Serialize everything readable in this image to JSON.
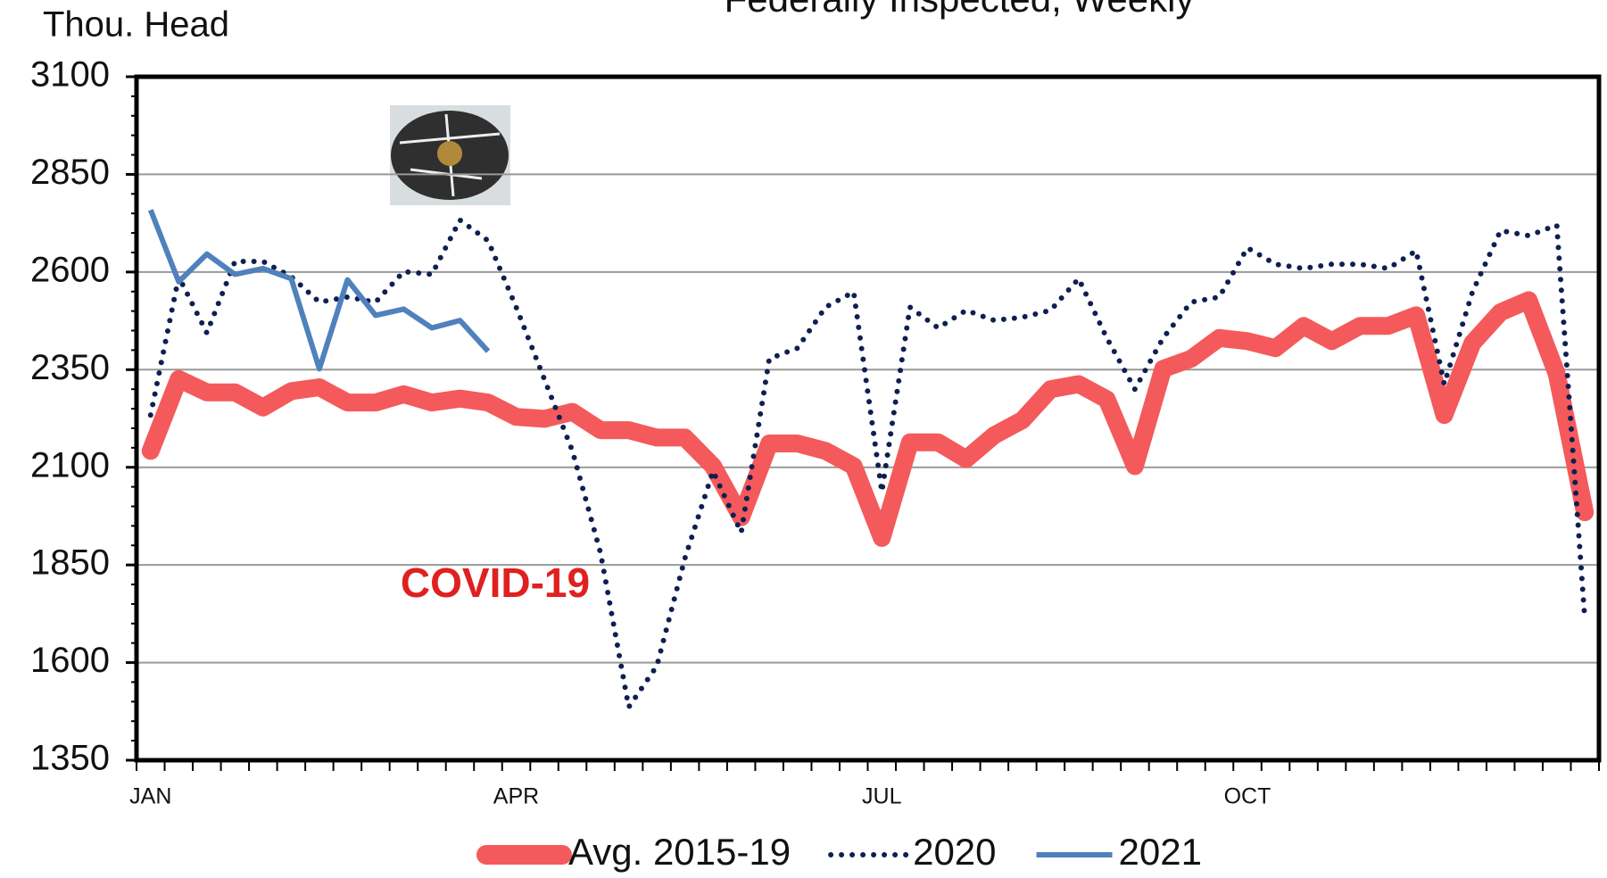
{
  "chart_data": {
    "type": "line",
    "title": "Federally Inspected, Weekly",
    "y_label": "Thou. Head",
    "annotation": "COVID-19",
    "categories": [
      "JAN",
      null,
      null,
      null,
      null,
      null,
      null,
      null,
      null,
      null,
      null,
      null,
      null,
      "APR",
      null,
      null,
      null,
      null,
      null,
      null,
      null,
      null,
      null,
      null,
      null,
      null,
      "JUL",
      null,
      null,
      null,
      null,
      null,
      null,
      null,
      null,
      null,
      null,
      null,
      null,
      "OCT",
      null,
      null,
      null,
      null,
      null,
      null,
      null,
      null,
      null,
      null,
      null,
      null
    ],
    "series": [
      {
        "name": "Avg. 2015-19",
        "color": "#f45a5b",
        "style": "thick",
        "values": [
          2142,
          2326,
          2292,
          2292,
          2253,
          2295,
          2305,
          2266,
          2266,
          2287,
          2266,
          2276,
          2266,
          2229,
          2224,
          2242,
          2195,
          2195,
          2176,
          2176,
          2103,
          1972,
          2161,
          2161,
          2142,
          2103,
          1919,
          2164,
          2164,
          2121,
          2182,
          2221,
          2300,
          2313,
          2274,
          2103,
          2352,
          2378,
          2431,
          2423,
          2405,
          2462,
          2423,
          2462,
          2462,
          2489,
          2234,
          2418,
          2497,
          2528,
          2339,
          1985
        ]
      },
      {
        "name": "2020",
        "color": "#0e1f52",
        "style": "dotted",
        "values": [
          2234,
          2588,
          2444,
          2627,
          2627,
          2588,
          2523,
          2536,
          2523,
          2601,
          2594,
          2733,
          2680,
          2510,
          2326,
          2142,
          1880,
          1486,
          1591,
          1867,
          2090,
          1933,
          2378,
          2405,
          2510,
          2549,
          2037,
          2510,
          2457,
          2502,
          2476,
          2484,
          2502,
          2583,
          2431,
          2300,
          2431,
          2523,
          2536,
          2662,
          2620,
          2609,
          2620,
          2620,
          2609,
          2654,
          2313,
          2549,
          2706,
          2693,
          2720,
          1709
        ]
      },
      {
        "name": "2021",
        "color": "#4f81bd",
        "style": "solid",
        "values": [
          2759,
          2575,
          2646,
          2594,
          2609,
          2583,
          2352,
          2580,
          2489,
          2505,
          2457,
          2476,
          2397,
          null,
          null,
          null,
          null,
          null,
          null,
          null,
          null,
          null,
          null,
          null,
          null,
          null,
          null,
          null,
          null,
          null,
          null,
          null,
          null,
          null,
          null,
          null,
          null,
          null,
          null,
          null,
          null,
          null,
          null,
          null,
          null,
          null,
          null,
          null,
          null,
          null,
          null,
          null
        ]
      }
    ],
    "ylim": [
      1350,
      3100
    ],
    "yticks": [
      1350,
      1600,
      1850,
      2100,
      2350,
      2600,
      2850,
      3100
    ],
    "grid": true
  }
}
